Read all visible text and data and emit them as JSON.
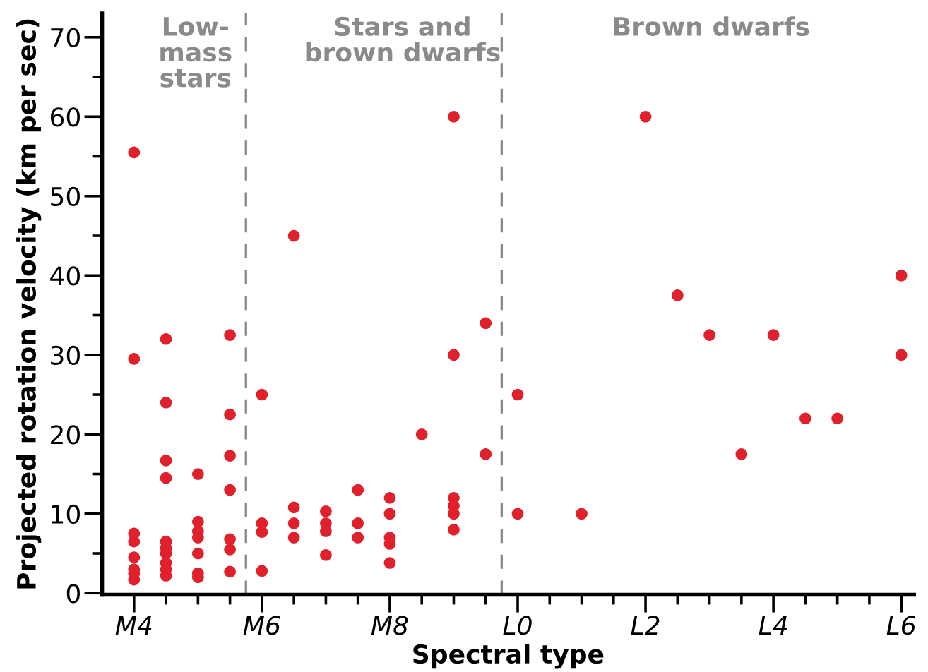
{
  "chart_data": {
    "type": "scatter",
    "xlabel": "Spectral type",
    "ylabel": "Projected rotation velocity (km per sec)",
    "categories": [
      "M4",
      null,
      null,
      null,
      "M6",
      null,
      null,
      null,
      "M8",
      null,
      null,
      null,
      "L0",
      null,
      null,
      null,
      "L2",
      null,
      null,
      null,
      "L4",
      null,
      null,
      null,
      "L6"
    ],
    "series": [
      {
        "color": "#e0202a",
        "values": [
          55.5,
          32,
          15,
          32.5,
          25,
          45,
          10.3,
          13,
          12,
          20,
          60,
          34,
          25,
          null,
          10,
          null,
          60,
          37.5,
          32.5,
          17.5,
          32.5,
          22,
          22,
          null,
          40
        ]
      },
      {
        "color": "#e0202a",
        "values": [
          29.5,
          24,
          9,
          22.5,
          8.8,
          10.8,
          8.8,
          8.8,
          10,
          null,
          30,
          17.5,
          10,
          null,
          null,
          null,
          null,
          null,
          null,
          null,
          null,
          null,
          null,
          null,
          30
        ]
      },
      {
        "color": "#e0202a",
        "values": [
          7.5,
          16.7,
          7.8,
          17.3,
          7.7,
          8.8,
          7.8,
          7,
          7,
          null,
          12,
          null,
          null,
          null,
          null,
          null,
          null,
          null,
          null,
          null,
          null,
          null,
          null,
          null,
          null
        ]
      },
      {
        "color": "#e0202a",
        "values": [
          6.5,
          14.5,
          7,
          13,
          2.8,
          7,
          4.8,
          null,
          6.2,
          null,
          11,
          null,
          null,
          null,
          null,
          null,
          null,
          null,
          null,
          null,
          null,
          null,
          null,
          null,
          null
        ]
      },
      {
        "color": "#e0202a",
        "values": [
          4.5,
          6.5,
          5,
          6.8,
          null,
          null,
          null,
          null,
          3.8,
          null,
          10,
          null,
          null,
          null,
          null,
          null,
          null,
          null,
          null,
          null,
          null,
          null,
          null,
          null,
          null
        ]
      },
      {
        "color": "#e0202a",
        "values": [
          3,
          5.7,
          2.5,
          5.5,
          null,
          null,
          null,
          null,
          null,
          null,
          8,
          null,
          null,
          null,
          null,
          null,
          null,
          null,
          null,
          null,
          null,
          null,
          null,
          null,
          null
        ]
      },
      {
        "color": "#e0202a",
        "values": [
          2.5,
          5,
          2,
          2.7,
          null,
          null,
          null,
          null,
          null,
          null,
          null,
          null,
          null,
          null,
          null,
          null,
          null,
          null,
          null,
          null,
          null,
          null,
          null,
          null,
          null
        ]
      },
      {
        "color": "#e0202a",
        "values": [
          1.7,
          3.8,
          null,
          null,
          null,
          null,
          null,
          null,
          null,
          null,
          null,
          null,
          null,
          null,
          null,
          null,
          null,
          null,
          null,
          null,
          null,
          null,
          null,
          null,
          null
        ]
      },
      {
        "color": "#e0202a",
        "values": [
          null,
          3,
          null,
          null,
          null,
          null,
          null,
          null,
          null,
          null,
          null,
          null,
          null,
          null,
          null,
          null,
          null,
          null,
          null,
          null,
          null,
          null,
          null,
          null,
          null
        ]
      },
      {
        "color": "#e0202a",
        "values": [
          null,
          2.2,
          null,
          null,
          null,
          null,
          null,
          null,
          null,
          null,
          null,
          null,
          null,
          null,
          null,
          null,
          null,
          null,
          null,
          null,
          null,
          null,
          null,
          null,
          null
        ]
      }
    ],
    "marker": "circle",
    "ylim": [
      -0.2,
      73
    ],
    "yticks": [
      0,
      {
        "value": 5,
        "label": null
      },
      10,
      {
        "value": 15,
        "label": null
      },
      20,
      {
        "value": 25,
        "label": null
      },
      30,
      {
        "value": 35,
        "label": null
      },
      40,
      {
        "value": 45,
        "label": null
      },
      50,
      {
        "value": 55,
        "label": null
      },
      60,
      {
        "value": 65,
        "label": null
      },
      70
    ],
    "annotations": [
      "Low-\nmass\nstars",
      "Stars and\nbrown dwarfs",
      "Brown dwarfs"
    ],
    "grid": false,
    "legend": false
  }
}
